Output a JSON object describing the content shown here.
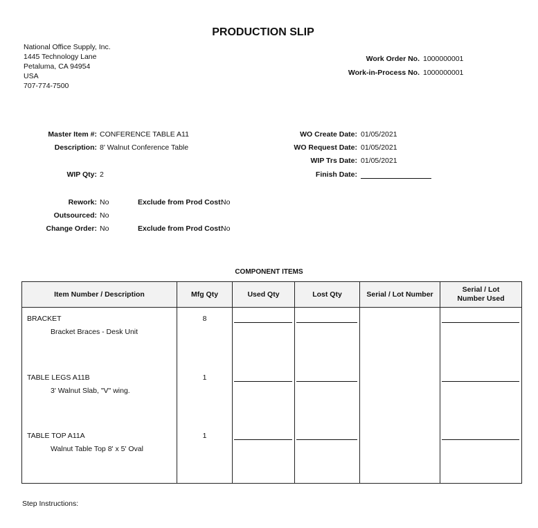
{
  "title": "PRODUCTION SLIP",
  "company": {
    "name": "National Office Supply, Inc.",
    "street": "1445 Technology Lane",
    "city": "Petaluma, CA 94954",
    "country": "USA",
    "phone": "707-774-7500"
  },
  "order": {
    "work_order_label": "Work Order No.",
    "work_order": "1000000001",
    "wip_label": "Work-in-Process No.",
    "wip": "1000000001"
  },
  "details": {
    "master_item_label": "Master Item #:",
    "master_item": "CONFERENCE TABLE A11",
    "description_label": "Description:",
    "description": "8' Walnut Conference Table",
    "wip_qty_label": "WIP Qty:",
    "wip_qty": "2",
    "wo_create_label": "WO Create Date:",
    "wo_create": "01/05/2021",
    "wo_request_label": "WO Request Date:",
    "wo_request": "01/05/2021",
    "wip_trs_label": "WIP Trs Date:",
    "wip_trs": "01/05/2021",
    "finish_label": "Finish Date:",
    "rework_label": "Rework:",
    "rework": "No",
    "outsourced_label": "Outsourced:",
    "outsourced": "No",
    "change_order_label": "Change Order:",
    "change_order": "No",
    "exclude1_label": "Exclude from Prod Cost:",
    "exclude1": "No",
    "exclude2_label": "Exclude from Prod Cost:",
    "exclude2": "No"
  },
  "components": {
    "heading": "COMPONENT ITEMS",
    "columns": [
      "Item Number / Description",
      "Mfg Qty",
      "Used Qty",
      "Lost Qty",
      "Serial / Lot Number",
      "Serial / Lot Number Used"
    ],
    "rows": [
      {
        "item": "BRACKET",
        "description": "Bracket Braces - Desk Unit",
        "mfg_qty": "8"
      },
      {
        "item": "TABLE LEGS A11B",
        "description": "3' Walnut Slab, \"V\" wing.",
        "mfg_qty": "1"
      },
      {
        "item": "TABLE TOP A11A",
        "description": "Walnut Table Top 8' x 5' Oval",
        "mfg_qty": "1"
      }
    ]
  },
  "step_instructions_label": "Step Instructions:"
}
